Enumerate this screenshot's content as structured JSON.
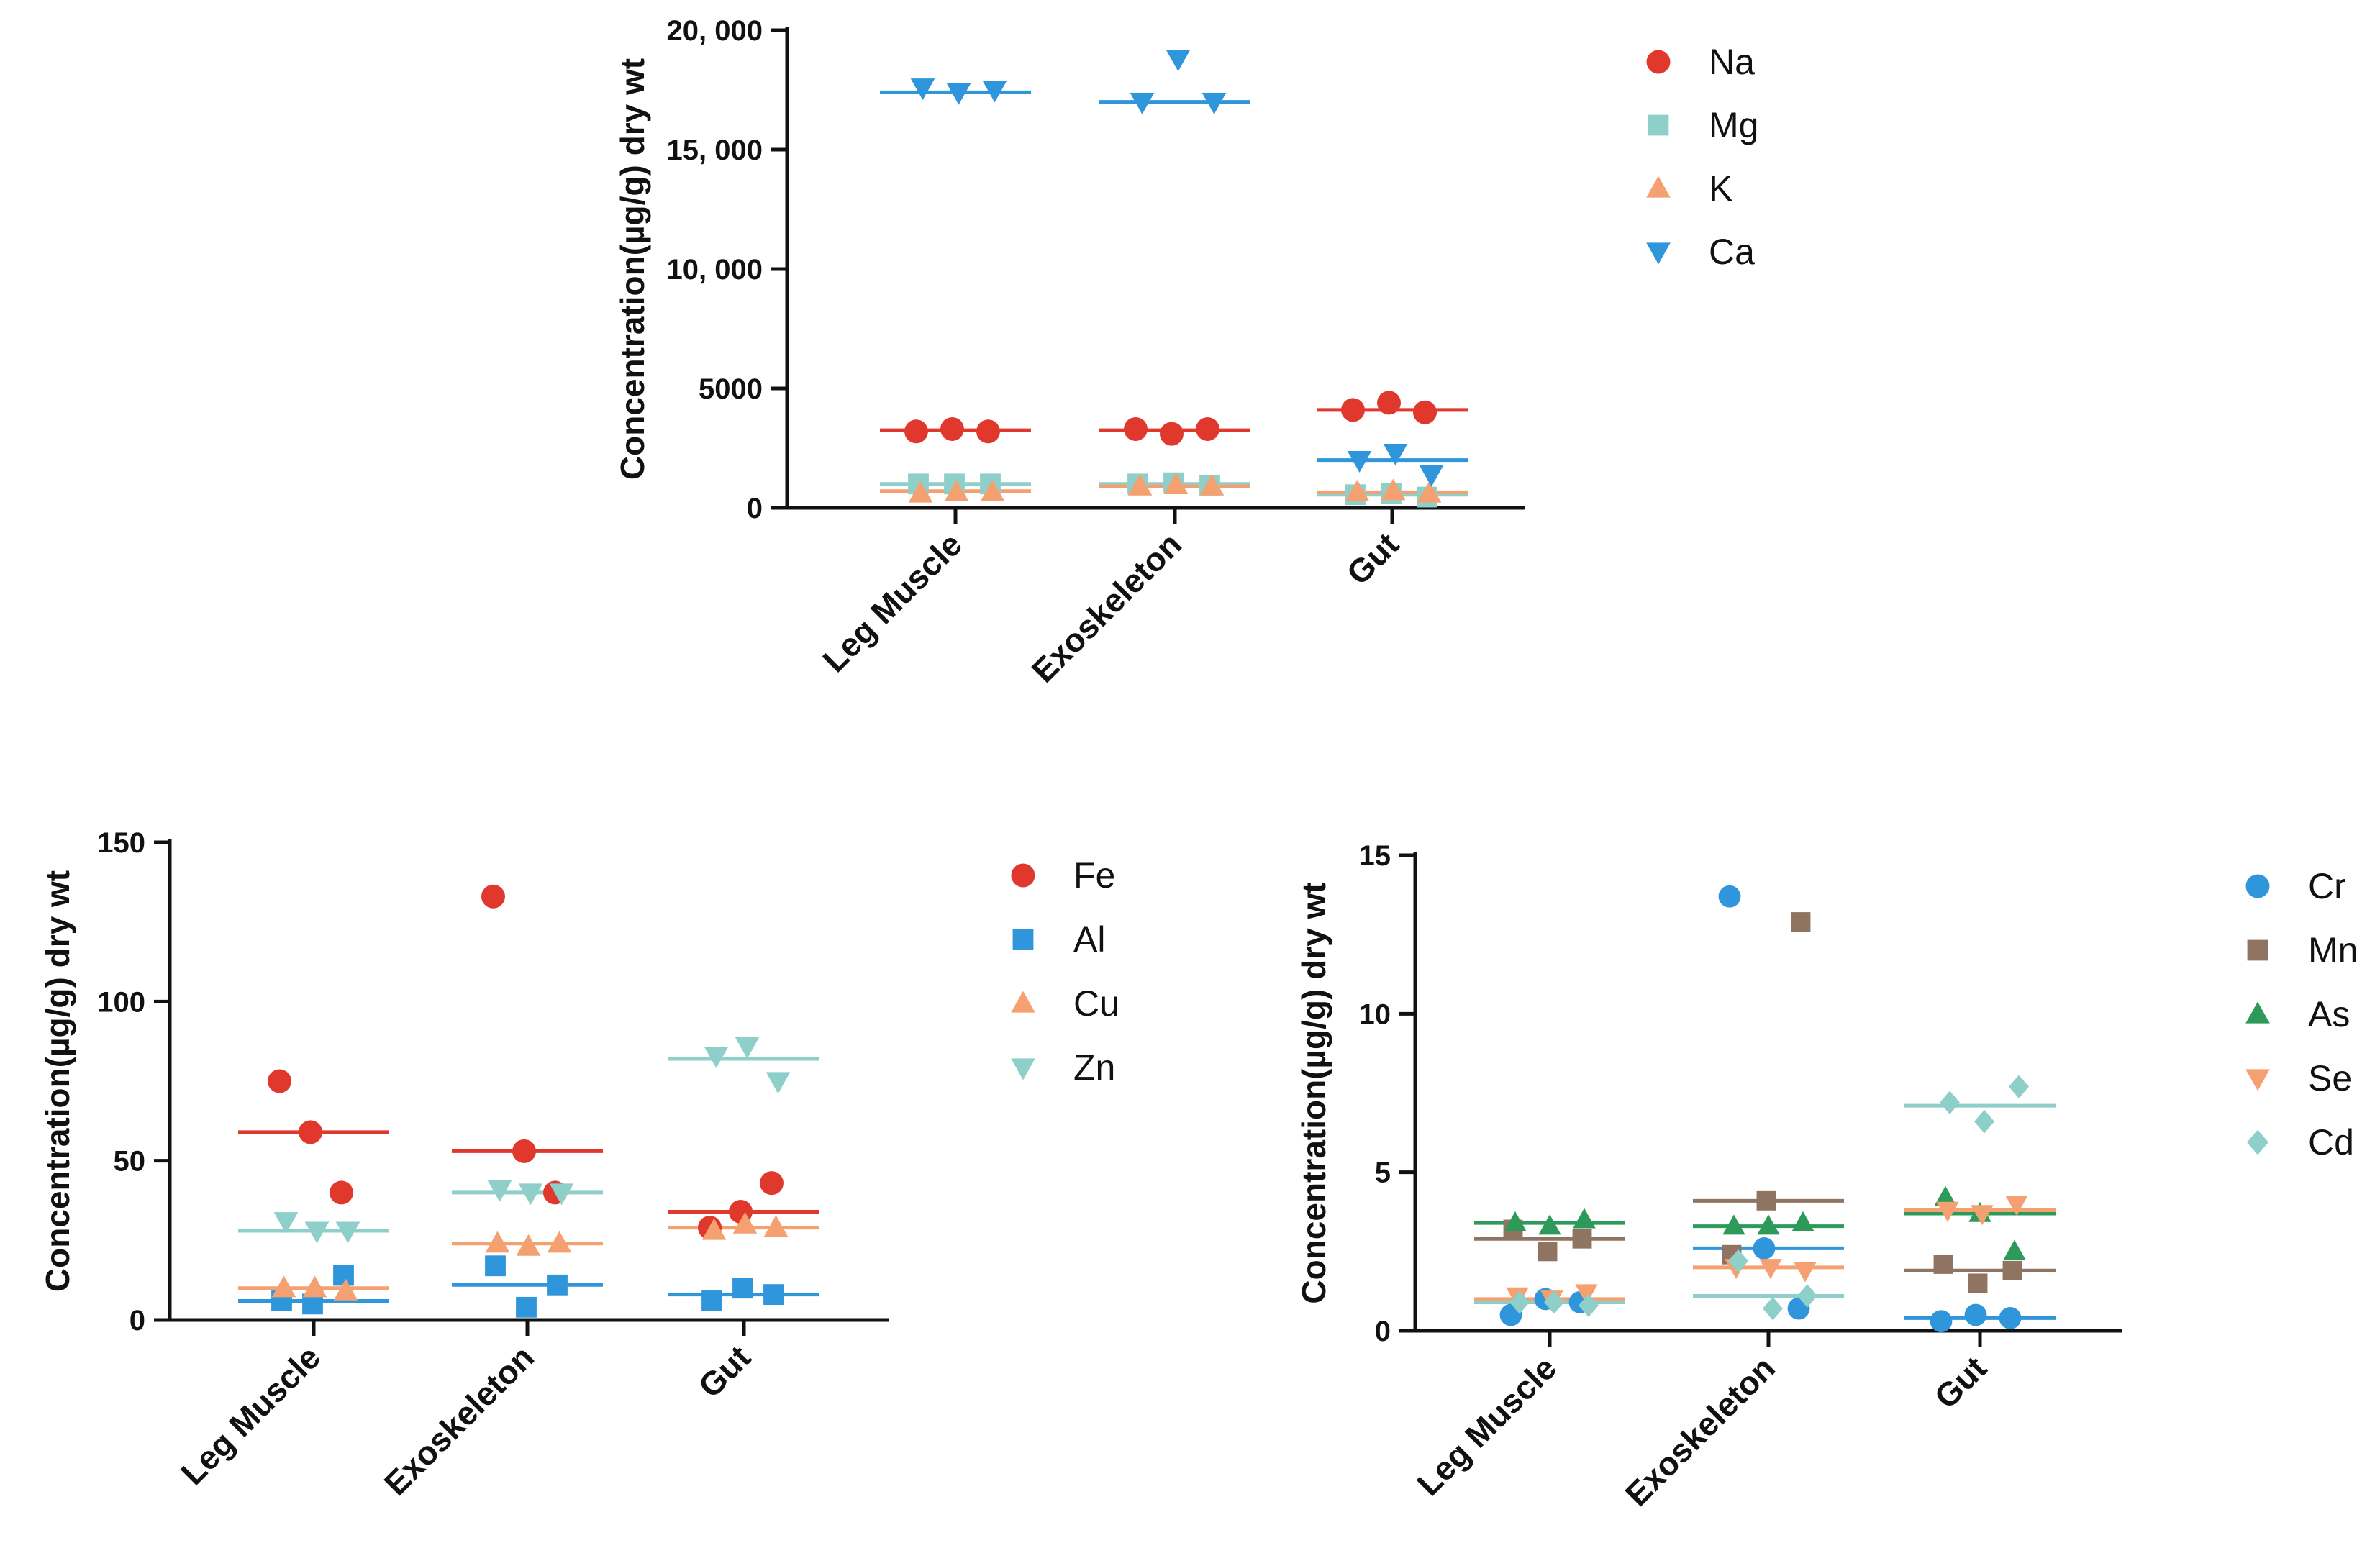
{
  "chart_data": [
    {
      "type": "scatter",
      "ylabel": "Concentration(µg/g) dry wt",
      "ylim": [
        0,
        20000
      ],
      "yticks": [
        0,
        5000,
        10000,
        15000,
        20000
      ],
      "ytick_labels": [
        "0",
        "5000",
        "10, 000",
        "15, 000",
        "20, 000"
      ],
      "categories": [
        "Leg Muscle",
        "Exoskeleton",
        "Gut"
      ],
      "legend_position": "top-right",
      "series": [
        {
          "name": "Na",
          "marker": "circle",
          "color": "#e0382d",
          "points": [
            [
              3200,
              3300,
              3200
            ],
            [
              3300,
              3100,
              3300
            ],
            [
              4100,
              4400,
              4000
            ]
          ],
          "means": [
            3250,
            3250,
            4100
          ]
        },
        {
          "name": "Mg",
          "marker": "square",
          "color": "#8ecfc9",
          "points": [
            [
              1000,
              1000,
              1000
            ],
            [
              1000,
              1050,
              950
            ],
            [
              550,
              600,
              450
            ]
          ],
          "means": [
            1000,
            1000,
            550
          ]
        },
        {
          "name": "K",
          "marker": "triangle-up",
          "color": "#f4a070",
          "points": [
            [
              600,
              650,
              650
            ],
            [
              900,
              950,
              900
            ],
            [
              650,
              700,
              600
            ]
          ],
          "means": [
            700,
            900,
            650
          ]
        },
        {
          "name": "Ca",
          "marker": "triangle-down",
          "color": "#2f96db",
          "points": [
            [
              17600,
              17400,
              17500
            ],
            [
              17000,
              18800,
              17000
            ],
            [
              2000,
              2300,
              1400
            ]
          ],
          "means": [
            17400,
            17000,
            2000
          ]
        }
      ]
    },
    {
      "type": "scatter",
      "ylabel": "Concentration(µg/g) dry wt",
      "ylim": [
        0,
        150
      ],
      "yticks": [
        0,
        50,
        100,
        150
      ],
      "ytick_labels": [
        "0",
        "50",
        "100",
        "150"
      ],
      "categories": [
        "Leg Muscle",
        "Exoskeleton",
        "Gut"
      ],
      "legend_position": "top-right",
      "series": [
        {
          "name": "Fe",
          "marker": "circle",
          "color": "#e0382d",
          "points": [
            [
              75,
              59,
              40
            ],
            [
              133,
              53,
              40
            ],
            [
              29,
              34,
              43
            ]
          ],
          "means": [
            59,
            53,
            34
          ]
        },
        {
          "name": "Al",
          "marker": "square",
          "color": "#2f96db",
          "points": [
            [
              6,
              5,
              14
            ],
            [
              17,
              4,
              11
            ],
            [
              6,
              10,
              8
            ]
          ],
          "means": [
            6,
            11,
            8
          ]
        },
        {
          "name": "Cu",
          "marker": "triangle-up",
          "color": "#f4a070",
          "points": [
            [
              10,
              10,
              9
            ],
            [
              24,
              23,
              24
            ],
            [
              28,
              30,
              29
            ]
          ],
          "means": [
            10,
            24,
            29
          ]
        },
        {
          "name": "Zn",
          "marker": "triangle-down",
          "color": "#8ecfc9",
          "points": [
            [
              31,
              28,
              28
            ],
            [
              41,
              40,
              40
            ],
            [
              83,
              86,
              75
            ]
          ],
          "means": [
            28,
            40,
            82
          ]
        }
      ]
    },
    {
      "type": "scatter",
      "ylabel": "Concentration(µg/g) dry wt",
      "ylim": [
        0,
        15
      ],
      "yticks": [
        0,
        5,
        10,
        15
      ],
      "ytick_labels": [
        "0",
        "5",
        "10",
        "15"
      ],
      "categories": [
        "Leg Muscle",
        "Exoskeleton",
        "Gut"
      ],
      "legend_position": "top-right",
      "series": [
        {
          "name": "Cr",
          "marker": "circle",
          "color": "#2f96db",
          "points": [
            [
              0.5,
              1.0,
              0.9
            ],
            [
              13.7,
              2.6,
              0.7
            ],
            [
              0.3,
              0.5,
              0.4
            ]
          ],
          "means": [
            0.9,
            2.6,
            0.4
          ]
        },
        {
          "name": "Mn",
          "marker": "square",
          "color": "#8f7462",
          "points": [
            [
              3.2,
              2.5,
              2.9
            ],
            [
              2.4,
              4.1,
              12.9
            ],
            [
              2.1,
              1.5,
              1.9
            ]
          ],
          "means": [
            2.9,
            4.1,
            1.9
          ]
        },
        {
          "name": "As",
          "marker": "triangle-up",
          "color": "#2e9a5a",
          "points": [
            [
              3.4,
              3.3,
              3.5
            ],
            [
              3.3,
              3.3,
              3.4
            ],
            [
              4.2,
              3.7,
              2.5
            ]
          ],
          "means": [
            3.4,
            3.3,
            3.7
          ]
        },
        {
          "name": "Se",
          "marker": "triangle-down",
          "color": "#f4a070",
          "points": [
            [
              1.1,
              1.0,
              1.2
            ],
            [
              2.0,
              2.0,
              1.9
            ],
            [
              3.8,
              3.7,
              4.0
            ]
          ],
          "means": [
            1.0,
            2.0,
            3.8
          ]
        },
        {
          "name": "Cd",
          "marker": "diamond",
          "color": "#8ecfc9",
          "points": [
            [
              0.9,
              0.9,
              0.8
            ],
            [
              2.2,
              0.7,
              1.1
            ],
            [
              7.2,
              6.6,
              7.7
            ]
          ],
          "means": [
            0.9,
            1.1,
            7.1
          ]
        }
      ]
    }
  ]
}
